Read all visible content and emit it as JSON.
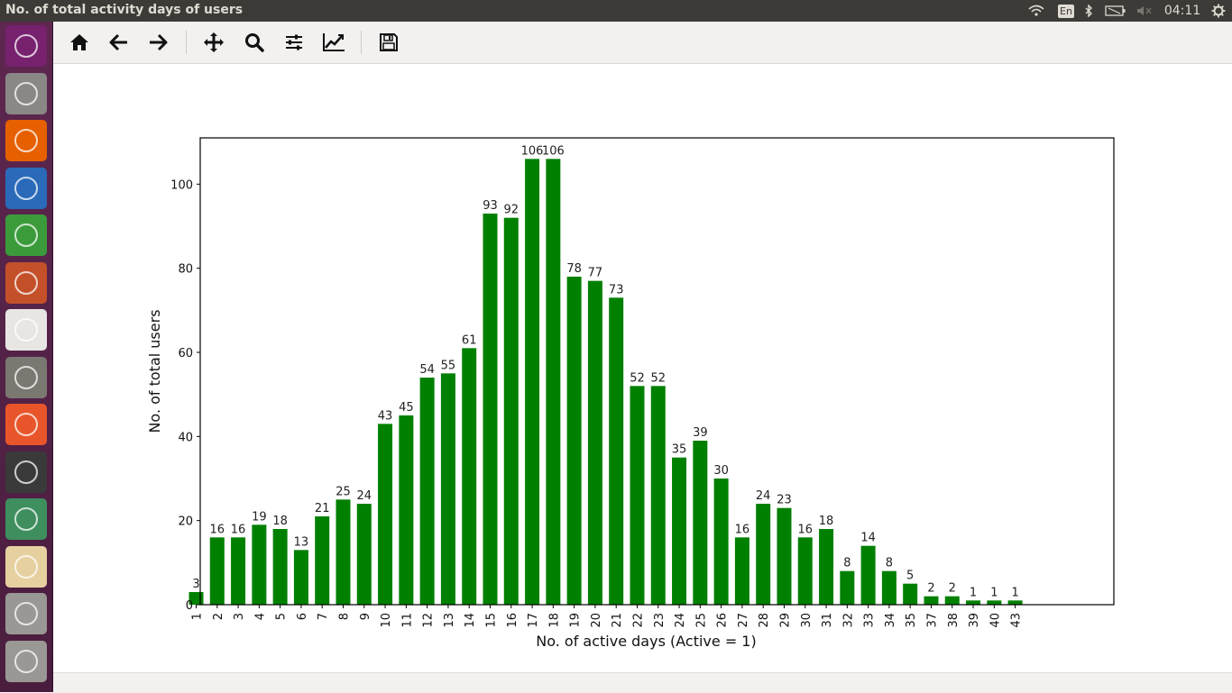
{
  "window": {
    "title": "No. of total activity days of users"
  },
  "tray": {
    "keyboard_layout": "En",
    "clock": "04:11"
  },
  "launcher": {
    "items": [
      {
        "icon": "ubuntu-dash-icon",
        "color": "#77216f"
      },
      {
        "icon": "files-icon",
        "color": "#8a8884"
      },
      {
        "icon": "firefox-icon",
        "color": "#e66000"
      },
      {
        "icon": "libreoffice-writer-icon",
        "color": "#2a6ab8"
      },
      {
        "icon": "libreoffice-calc-icon",
        "color": "#3b9b3b"
      },
      {
        "icon": "libreoffice-impress-icon",
        "color": "#c4502a"
      },
      {
        "icon": "amazon-icon",
        "color": "#e8e6e3"
      },
      {
        "icon": "system-settings-icon",
        "color": "#7b7872"
      },
      {
        "icon": "software-center-icon",
        "color": "#e8552a"
      },
      {
        "icon": "terminal-icon",
        "color": "#3a3a3a"
      },
      {
        "icon": "atom-editor-icon",
        "color": "#3e8e5e"
      },
      {
        "icon": "matplotlib-figure-icon",
        "color": "#e6d0a0"
      },
      {
        "icon": "drive-icon",
        "color": "#9a9894"
      },
      {
        "icon": "drive-icon",
        "color": "#9a9894"
      }
    ]
  },
  "toolbar": {
    "buttons": [
      {
        "icon": "home-icon"
      },
      {
        "icon": "back-arrow-icon"
      },
      {
        "icon": "forward-arrow-icon"
      },
      {
        "icon": "pan-icon"
      },
      {
        "icon": "zoom-icon"
      },
      {
        "icon": "subplots-config-icon"
      },
      {
        "icon": "edit-axis-icon"
      },
      {
        "icon": "save-icon"
      }
    ]
  },
  "chart_data": {
    "type": "bar",
    "title": "",
    "xlabel": "No. of active days (Active = 1)",
    "ylabel": "No. of total users",
    "categories": [
      "1",
      "2",
      "3",
      "4",
      "5",
      "6",
      "7",
      "8",
      "9",
      "10",
      "11",
      "12",
      "13",
      "14",
      "15",
      "16",
      "17",
      "18",
      "19",
      "20",
      "21",
      "22",
      "23",
      "24",
      "25",
      "26",
      "27",
      "28",
      "29",
      "30",
      "31",
      "32",
      "33",
      "34",
      "35",
      "37",
      "38",
      "39",
      "40",
      "43"
    ],
    "values": [
      3,
      16,
      16,
      19,
      18,
      13,
      21,
      25,
      24,
      43,
      45,
      54,
      55,
      61,
      93,
      92,
      106,
      106,
      78,
      77,
      73,
      52,
      52,
      35,
      39,
      30,
      16,
      24,
      23,
      16,
      18,
      8,
      14,
      8,
      5,
      2,
      2,
      1,
      1,
      1
    ],
    "ylim": [
      0,
      111
    ],
    "yticks": [
      0,
      20,
      40,
      60,
      80,
      100
    ],
    "bar_color": "#008000",
    "grid": false,
    "legend": null
  }
}
